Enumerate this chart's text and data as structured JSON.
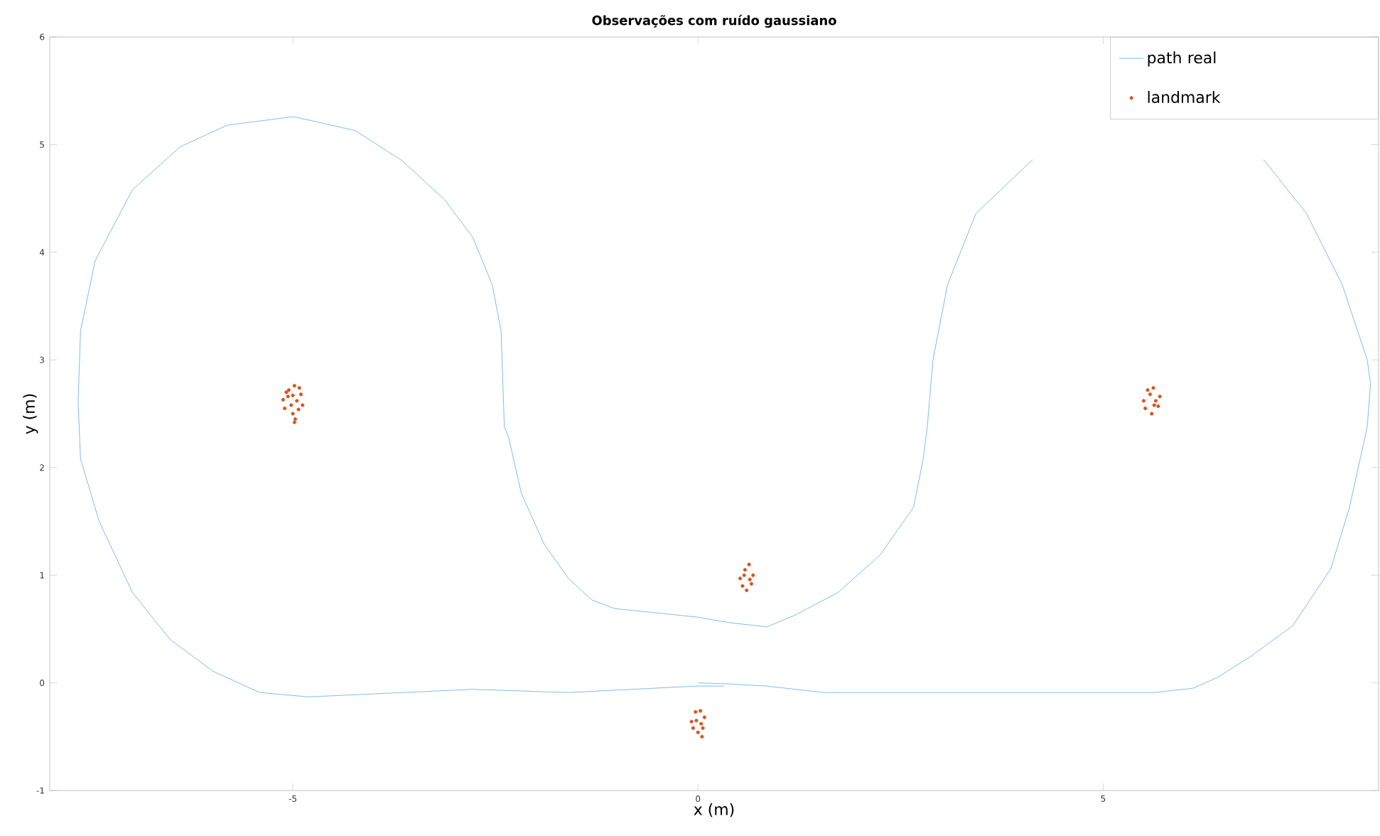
{
  "chart_data": {
    "type": "line",
    "title": "Observações com ruído gaussiano",
    "xlabel": "x (m)",
    "ylabel": "y (m)",
    "xlim": [
      -8,
      8.4
    ],
    "ylim": [
      -1,
      6
    ],
    "xticks": [
      -5,
      0,
      5
    ],
    "yticks": [
      -1,
      0,
      1,
      2,
      3,
      4,
      5,
      6
    ],
    "grid": false,
    "legend": "top right",
    "series": [
      {
        "name": "path real",
        "color": "#80bde8",
        "marker": "none",
        "line_style": "solid",
        "x": [
          0.0,
          0.38,
          0.85,
          1.55,
          3.65,
          5.63,
          6.11,
          6.41,
          6.81,
          7.34,
          7.81,
          8.04,
          8.26,
          8.3,
          8.26,
          7.95,
          7.51,
          6.98,
          null,
          4.13,
          3.43,
          3.08,
          2.9,
          2.83,
          2.78,
          2.66,
          2.25,
          1.73,
          1.2,
          0.85,
          0.38,
          0.0,
          -1.03,
          -1.31,
          -1.6,
          -1.9,
          -2.18,
          -2.34,
          -2.39,
          -2.43,
          -2.54,
          -2.78,
          -3.13,
          -3.65,
          -4.23,
          -4.99,
          -5.81,
          -6.39,
          -6.98,
          -7.44,
          -7.62,
          -7.65,
          -7.62,
          -7.39,
          -6.98,
          -6.51,
          -5.99,
          -5.41,
          -4.81,
          -3.93,
          -2.78,
          -1.6,
          -0.02,
          0.32
        ],
        "values": [
          0.0,
          -0.01,
          -0.03,
          -0.09,
          -0.09,
          -0.09,
          -0.05,
          0.05,
          0.24,
          0.53,
          1.06,
          1.63,
          2.38,
          2.78,
          3.0,
          3.7,
          4.36,
          4.86,
          null,
          4.86,
          4.36,
          3.7,
          3.0,
          2.38,
          2.08,
          1.63,
          1.19,
          0.84,
          0.63,
          0.52,
          0.56,
          0.61,
          0.69,
          0.77,
          0.97,
          1.29,
          1.76,
          2.29,
          2.38,
          3.27,
          3.7,
          4.14,
          4.49,
          4.85,
          5.13,
          5.26,
          5.18,
          4.98,
          4.58,
          3.92,
          3.27,
          2.61,
          2.08,
          1.5,
          0.84,
          0.4,
          0.11,
          -0.09,
          -0.13,
          -0.1,
          -0.06,
          -0.09,
          -0.03,
          -0.03
        ]
      },
      {
        "name": "landmark",
        "type": "scatter",
        "color": "#d95319",
        "marker": "circle",
        "x": [
          -5.12,
          -5.05,
          -4.98,
          -4.9,
          -4.88,
          -5.1,
          -5.0,
          -4.95,
          -5.06,
          -4.92,
          -5.02,
          -4.97,
          -5.08,
          -4.93,
          -5.0,
          -4.98,
          5.5,
          5.55,
          5.62,
          5.7,
          5.68,
          5.52,
          5.6,
          5.65,
          5.58,
          5.63,
          0.52,
          0.58,
          0.63,
          0.68,
          0.66,
          0.55,
          0.6,
          0.64,
          0.57,
          -0.08,
          -0.03,
          0.03,
          0.08,
          0.06,
          -0.06,
          0.0,
          0.05,
          -0.02,
          0.04
        ],
        "values": [
          2.63,
          2.72,
          2.76,
          2.68,
          2.58,
          2.55,
          2.5,
          2.62,
          2.66,
          2.74,
          2.58,
          2.45,
          2.7,
          2.54,
          2.67,
          2.42,
          2.62,
          2.72,
          2.74,
          2.66,
          2.57,
          2.55,
          2.5,
          2.62,
          2.68,
          2.58,
          0.97,
          1.05,
          1.1,
          1.0,
          0.92,
          0.9,
          0.86,
          0.96,
          1.0,
          -0.36,
          -0.27,
          -0.26,
          -0.32,
          -0.42,
          -0.42,
          -0.46,
          -0.5,
          -0.35,
          -0.38
        ]
      }
    ]
  }
}
